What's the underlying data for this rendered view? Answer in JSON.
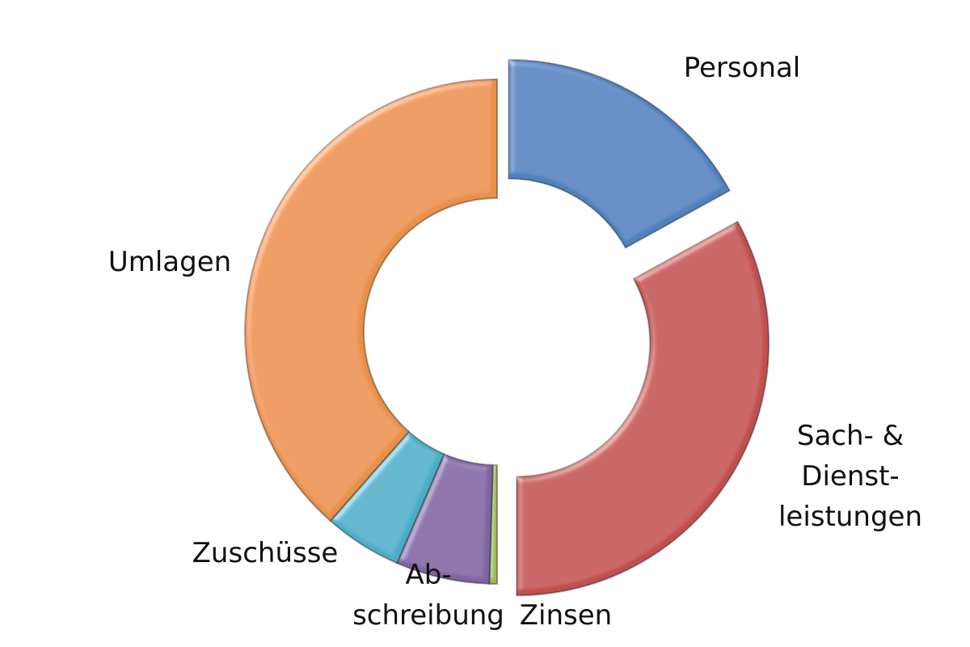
{
  "chart_data": {
    "type": "donut",
    "categories": [
      "Personal",
      "Sach- &\nDienst-\nleistungen",
      "Zinsen",
      "Ab-\nschreibung",
      "Zuschüsse",
      "Umlagen"
    ],
    "values": [
      17,
      33,
      0.5,
      6,
      5,
      38.5
    ],
    "colors": [
      "#4f81bd",
      "#c0504d",
      "#9bbb59",
      "#8064a2",
      "#4bacc6",
      "#e8904a"
    ]
  }
}
